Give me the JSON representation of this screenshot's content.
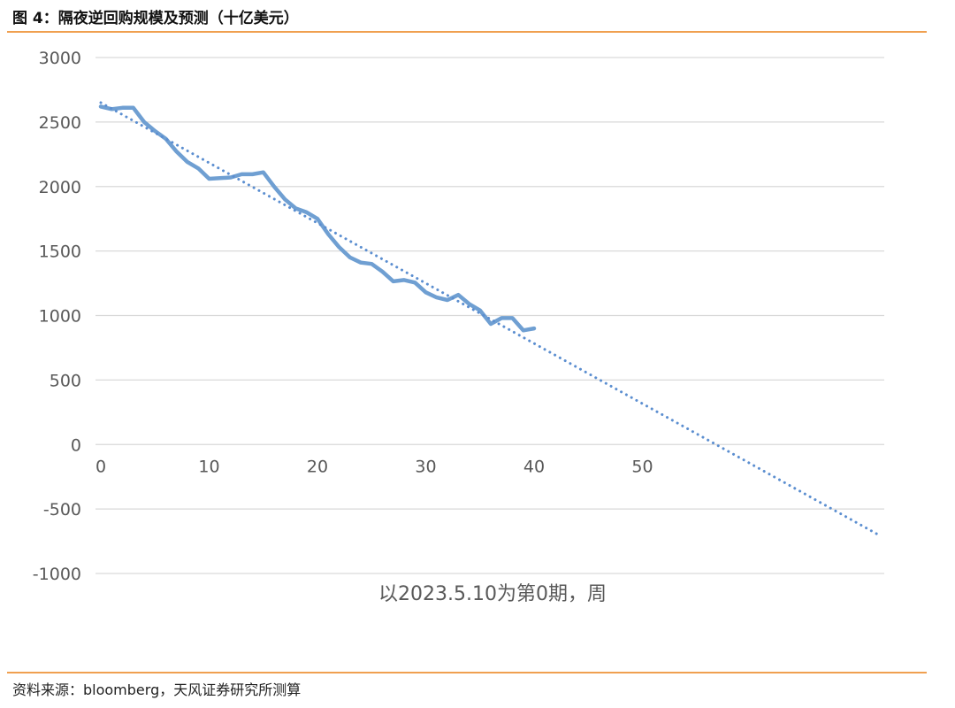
{
  "figure": {
    "title": "图 4：隔夜逆回购规模及预测（十亿美元）",
    "source": "资料来源：bloomberg，天风证券研究所测算"
  },
  "chart_data": {
    "type": "line",
    "title": "",
    "xlabel": "以2023.5.10为第0期，周",
    "ylabel": "",
    "xlim": [
      0,
      72
    ],
    "ylim": [
      -1000,
      3000
    ],
    "x_ticks": [
      0,
      10,
      20,
      30,
      40,
      50
    ],
    "y_ticks": [
      3000,
      2500,
      2000,
      1500,
      1000,
      500,
      0,
      -500,
      -1000
    ],
    "grid": "horizontal",
    "legend": "none",
    "series": [
      {
        "style": "solid",
        "color": "#6f9fd2",
        "x": [
          0,
          1,
          2,
          3,
          4,
          5,
          6,
          7,
          8,
          9,
          10,
          11,
          12,
          13,
          14,
          15,
          16,
          17,
          18,
          19,
          20,
          21,
          22,
          23,
          24,
          25,
          26,
          27,
          28,
          29,
          30,
          31,
          32,
          33,
          34,
          35,
          36,
          37,
          38,
          39,
          40
        ],
        "values": [
          2620,
          2600,
          2610,
          2610,
          2500,
          2430,
          2370,
          2270,
          2190,
          2140,
          2060,
          2065,
          2070,
          2095,
          2095,
          2110,
          2000,
          1900,
          1830,
          1800,
          1750,
          1630,
          1530,
          1450,
          1410,
          1400,
          1340,
          1265,
          1275,
          1255,
          1180,
          1140,
          1120,
          1160,
          1090,
          1040,
          935,
          980,
          980,
          885,
          900
        ]
      },
      {
        "style": "dotted",
        "color": "#5b8ed0",
        "x": [
          0,
          72
        ],
        "values": [
          2650,
          -710
        ]
      }
    ]
  }
}
